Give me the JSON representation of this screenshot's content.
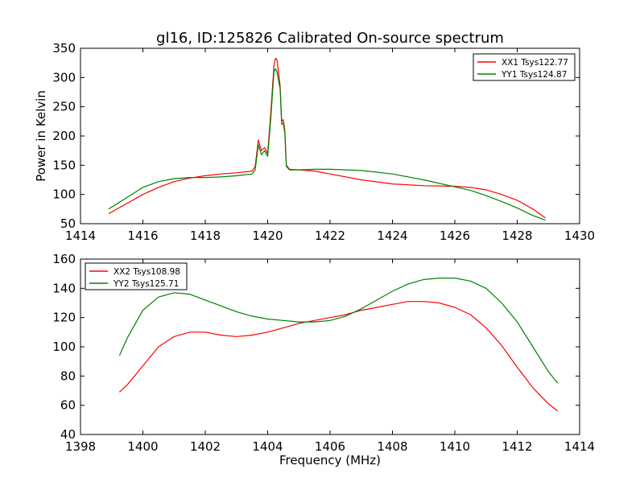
{
  "figure_title": "gl16, ID:125826 Calibrated On-source spectrum",
  "chart_data": [
    {
      "type": "line",
      "title": "gl16, ID:125826 Calibrated On-source spectrum",
      "xlabel": "",
      "ylabel": "Power in Kelvin",
      "xlim": [
        1414,
        1430
      ],
      "ylim": [
        50,
        350
      ],
      "xticks": [
        1414,
        1416,
        1418,
        1420,
        1422,
        1424,
        1426,
        1428,
        1430
      ],
      "yticks": [
        50,
        100,
        150,
        200,
        250,
        300,
        350
      ],
      "grid": false,
      "legend_position": "top-right",
      "series": [
        {
          "name": "XX1 Tsys122.77",
          "color": "#ff0000",
          "x": [
            1414.9,
            1415.5,
            1416.0,
            1416.5,
            1417.0,
            1417.5,
            1418.0,
            1418.5,
            1419.0,
            1419.5,
            1419.6,
            1419.7,
            1419.8,
            1419.9,
            1420.0,
            1420.1,
            1420.2,
            1420.25,
            1420.3,
            1420.4,
            1420.45,
            1420.5,
            1420.55,
            1420.6,
            1420.7,
            1421.0,
            1421.5,
            1422.0,
            1423.0,
            1424.0,
            1425.0,
            1426.0,
            1426.5,
            1427.0,
            1427.5,
            1428.0,
            1428.5,
            1428.9
          ],
          "y": [
            67,
            85,
            100,
            112,
            122,
            128,
            132,
            135,
            137,
            140,
            148,
            193,
            175,
            180,
            170,
            240,
            320,
            333,
            330,
            285,
            225,
            228,
            210,
            150,
            143,
            142,
            140,
            135,
            125,
            118,
            115,
            114,
            112,
            108,
            100,
            90,
            75,
            60
          ]
        },
        {
          "name": "YY1 Tsys124.87",
          "color": "#008000",
          "x": [
            1414.9,
            1415.5,
            1416.0,
            1416.5,
            1417.0,
            1417.5,
            1418.0,
            1418.5,
            1419.0,
            1419.5,
            1419.6,
            1419.7,
            1419.8,
            1419.9,
            1420.0,
            1420.1,
            1420.2,
            1420.25,
            1420.3,
            1420.4,
            1420.45,
            1420.5,
            1420.55,
            1420.6,
            1420.7,
            1421.0,
            1421.5,
            1422.0,
            1423.0,
            1424.0,
            1425.0,
            1426.0,
            1426.5,
            1427.0,
            1427.5,
            1428.0,
            1428.5,
            1428.9
          ],
          "y": [
            75,
            95,
            112,
            122,
            127,
            129,
            129,
            130,
            132,
            135,
            142,
            185,
            168,
            175,
            165,
            230,
            310,
            315,
            310,
            280,
            220,
            222,
            205,
            148,
            142,
            142,
            143,
            143,
            141,
            135,
            125,
            113,
            107,
            98,
            88,
            77,
            64,
            56
          ]
        }
      ]
    },
    {
      "type": "line",
      "title": "",
      "xlabel": "Frequency (MHz)",
      "ylabel": "",
      "xlim": [
        1398,
        1414
      ],
      "ylim": [
        40,
        160
      ],
      "xticks": [
        1398,
        1400,
        1402,
        1404,
        1406,
        1408,
        1410,
        1412,
        1414
      ],
      "yticks": [
        40,
        60,
        80,
        100,
        120,
        140,
        160
      ],
      "grid": false,
      "legend_position": "top-left",
      "series": [
        {
          "name": "XX2 Tsys108.98",
          "color": "#ff0000",
          "x": [
            1399.25,
            1399.5,
            1400.0,
            1400.5,
            1401.0,
            1401.5,
            1402.0,
            1402.5,
            1403.0,
            1403.5,
            1404.0,
            1404.5,
            1405.0,
            1405.5,
            1406.0,
            1406.5,
            1407.0,
            1407.5,
            1408.0,
            1408.5,
            1409.0,
            1409.5,
            1410.0,
            1410.5,
            1411.0,
            1411.5,
            1412.0,
            1412.5,
            1413.0,
            1413.3
          ],
          "y": [
            69,
            74,
            87,
            100,
            107,
            110,
            110,
            108,
            107,
            108,
            110,
            113,
            116,
            118,
            120,
            122,
            125,
            127,
            129,
            131,
            131,
            130,
            127,
            122,
            113,
            101,
            86,
            72,
            61,
            56
          ]
        },
        {
          "name": "YY2 Tsys125.71",
          "color": "#008000",
          "x": [
            1399.25,
            1399.5,
            1400.0,
            1400.5,
            1401.0,
            1401.5,
            1402.0,
            1402.5,
            1403.0,
            1403.5,
            1404.0,
            1404.5,
            1405.0,
            1405.5,
            1406.0,
            1406.5,
            1407.0,
            1407.5,
            1408.0,
            1408.5,
            1409.0,
            1409.5,
            1410.0,
            1410.5,
            1411.0,
            1411.5,
            1412.0,
            1412.5,
            1413.0,
            1413.3
          ],
          "y": [
            94,
            106,
            125,
            134,
            137,
            136,
            132,
            128,
            124,
            121,
            119,
            118,
            117,
            117,
            118,
            121,
            126,
            132,
            138,
            143,
            146,
            147,
            147,
            145,
            140,
            130,
            117,
            100,
            83,
            75
          ]
        }
      ]
    }
  ]
}
